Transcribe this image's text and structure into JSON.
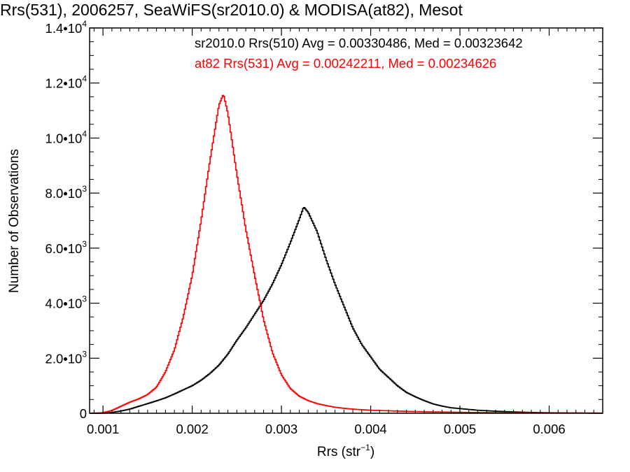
{
  "chart_data": {
    "type": "line",
    "title": "Rrs(531), 2006257, SeaWiFS(sr2010.0) & MODISA(at82), Mesot",
    "xlabel_main": "Rrs (str",
    "xlabel_sup": "−1",
    "xlabel_close": ")",
    "ylabel": "Number of Observations",
    "xlim": [
      0.00085,
      0.0066
    ],
    "ylim": [
      0,
      14000
    ],
    "x_ticks": [
      {
        "value": 0.001,
        "label": "0.001"
      },
      {
        "value": 0.002,
        "label": "0.002"
      },
      {
        "value": 0.003,
        "label": "0.003"
      },
      {
        "value": 0.004,
        "label": "0.004"
      },
      {
        "value": 0.005,
        "label": "0.005"
      },
      {
        "value": 0.006,
        "label": "0.006"
      }
    ],
    "y_ticks": [
      {
        "value": 0,
        "mantissa": "0",
        "exp": ""
      },
      {
        "value": 2000,
        "mantissa": "2.0•10",
        "exp": "3"
      },
      {
        "value": 4000,
        "mantissa": "4.0•10",
        "exp": "3"
      },
      {
        "value": 6000,
        "mantissa": "6.0•10",
        "exp": "3"
      },
      {
        "value": 8000,
        "mantissa": "8.0•10",
        "exp": "3"
      },
      {
        "value": 10000,
        "mantissa": "1.0•10",
        "exp": "4"
      },
      {
        "value": 12000,
        "mantissa": "1.2•10",
        "exp": "4"
      },
      {
        "value": 14000,
        "mantissa": "1.4•10",
        "exp": "4"
      }
    ],
    "annotations": [
      {
        "text": "sr2010.0 Rrs(510) Avg = 0.00330486, Med = 0.00323642",
        "color": "#000000"
      },
      {
        "text": "at82 Rrs(531) Avg = 0.00242211, Med = 0.00234626",
        "color": "#ff0000"
      }
    ],
    "series": [
      {
        "color": "#000000",
        "x": [
          0.00085,
          0.001,
          0.0011,
          0.0012,
          0.0013,
          0.0014,
          0.0015,
          0.0016,
          0.0017,
          0.0018,
          0.0019,
          0.002,
          0.0021,
          0.0022,
          0.0023,
          0.0024,
          0.0025,
          0.0026,
          0.0027,
          0.0028,
          0.0029,
          0.003,
          0.0031,
          0.0032,
          0.00325,
          0.0033,
          0.0034,
          0.0035,
          0.0036,
          0.0037,
          0.0038,
          0.0039,
          0.004,
          0.0041,
          0.0042,
          0.0043,
          0.0044,
          0.0045,
          0.0046,
          0.0047,
          0.0048,
          0.0049,
          0.005,
          0.0052,
          0.0054,
          0.0056,
          0.0058,
          0.006,
          0.0062,
          0.0064,
          0.0066
        ],
        "values": [
          0,
          0,
          30,
          80,
          150,
          250,
          350,
          450,
          560,
          700,
          850,
          1000,
          1200,
          1450,
          1750,
          2150,
          2650,
          3100,
          3600,
          4100,
          4700,
          5400,
          6200,
          7050,
          7500,
          7300,
          6600,
          5600,
          4700,
          3900,
          3100,
          2500,
          2050,
          1600,
          1300,
          1000,
          760,
          600,
          460,
          340,
          260,
          200,
          170,
          110,
          75,
          50,
          30,
          20,
          12,
          8,
          5
        ]
      },
      {
        "color": "#ff0000",
        "x": [
          0.00085,
          0.001,
          0.0011,
          0.0012,
          0.0013,
          0.0014,
          0.0015,
          0.0016,
          0.0017,
          0.0018,
          0.0019,
          0.002,
          0.0021,
          0.0022,
          0.0023,
          0.00235,
          0.0024,
          0.0025,
          0.0026,
          0.0027,
          0.0028,
          0.0029,
          0.003,
          0.0031,
          0.0032,
          0.0033,
          0.0034,
          0.0035,
          0.0036,
          0.0037,
          0.0038,
          0.004,
          0.0042,
          0.0044,
          0.0046,
          0.0048,
          0.005,
          0.0052,
          0.0055,
          0.0058,
          0.0062,
          0.0066
        ],
        "values": [
          0,
          20,
          100,
          250,
          400,
          520,
          680,
          950,
          1500,
          2300,
          3500,
          5000,
          7000,
          9200,
          11200,
          11600,
          10900,
          8700,
          6700,
          5000,
          3400,
          2200,
          1400,
          900,
          620,
          460,
          350,
          280,
          220,
          180,
          150,
          110,
          90,
          70,
          55,
          45,
          35,
          28,
          20,
          15,
          10,
          5
        ]
      }
    ]
  }
}
